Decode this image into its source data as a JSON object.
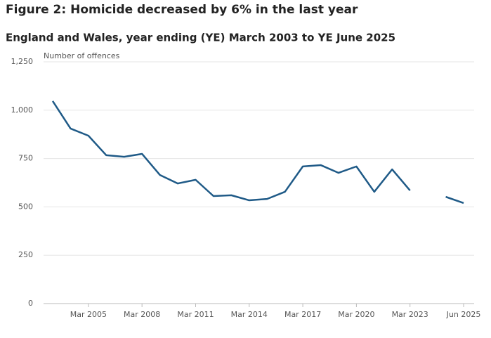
{
  "chart_data": {
    "type": "line",
    "title": "Figure 2: Homicide decreased by 6% in the last year",
    "subtitle": "England and Wales, year ending (YE) March 2003 to YE June 2025",
    "y_label": "Number of offences",
    "categories": [
      null,
      null,
      "Mar 2005",
      null,
      null,
      "Mar 2008",
      null,
      null,
      "Mar 2011",
      null,
      null,
      "Mar 2014",
      null,
      null,
      "Mar 2017",
      null,
      null,
      "Mar 2020",
      null,
      null,
      "Mar 2023",
      null,
      null,
      "Jun 2025"
    ],
    "series": [
      {
        "name": "Homicide",
        "color": "#1f5a87",
        "values": [
          1047,
          905,
          868,
          767,
          759,
          774,
          665,
          621,
          640,
          556,
          560,
          534,
          541,
          578,
          709,
          716,
          676,
          709,
          578,
          694,
          585,
          null,
          552,
          520
        ]
      }
    ],
    "ylim": [
      0,
      1250
    ],
    "yticks": [
      0,
      250,
      500,
      750,
      {
        "value": 1000,
        "label": "1,000"
      },
      {
        "value": 1250,
        "label": "1,250"
      }
    ],
    "grid": true
  }
}
